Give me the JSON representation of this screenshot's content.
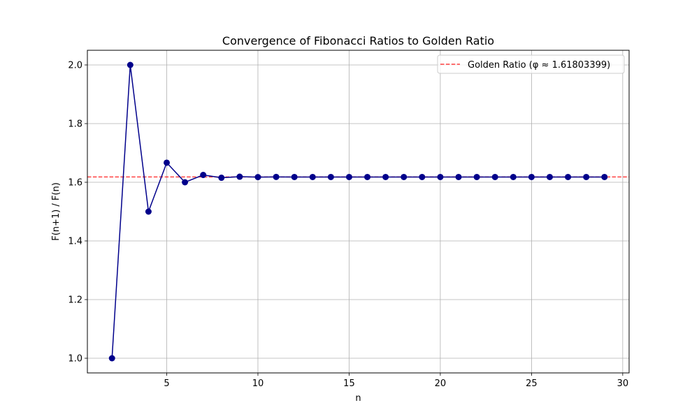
{
  "chart_data": {
    "type": "line",
    "title": "Convergence of Fibonacci Ratios to Golden Ratio",
    "xlabel": "n",
    "ylabel": "F(n+1) / F(n)",
    "xlim": [
      0.65,
      30.35
    ],
    "ylim": [
      0.95,
      2.05
    ],
    "x_ticks": [
      5,
      10,
      15,
      20,
      25,
      30
    ],
    "y_ticks": [
      1.0,
      1.2,
      1.4,
      1.6,
      1.8,
      2.0
    ],
    "x_tick_labels": [
      "5",
      "10",
      "15",
      "20",
      "25",
      "30"
    ],
    "y_tick_labels": [
      "1.0",
      "1.2",
      "1.4",
      "1.6",
      "1.8",
      "2.0"
    ],
    "grid": true,
    "legend_position": "upper right",
    "series": [
      {
        "color": "#00008b",
        "marker": "circle",
        "x": [
          2,
          3,
          4,
          5,
          6,
          7,
          8,
          9,
          10,
          11,
          12,
          13,
          14,
          15,
          16,
          17,
          18,
          19,
          20,
          21,
          22,
          23,
          24,
          25,
          26,
          27,
          28,
          29
        ],
        "y": [
          1.0,
          2.0,
          1.5,
          1.6667,
          1.6,
          1.625,
          1.6154,
          1.619,
          1.6176,
          1.6182,
          1.618,
          1.618,
          1.618,
          1.618,
          1.618,
          1.618,
          1.618,
          1.618,
          1.618,
          1.618,
          1.618,
          1.618,
          1.618,
          1.618,
          1.618,
          1.618,
          1.618,
          1.618
        ]
      }
    ],
    "reference_line": {
      "name": "Golden Ratio (φ ≈ 1.61803399)",
      "y": 1.61803399,
      "color": "#ff0000",
      "style": "dashed"
    }
  }
}
